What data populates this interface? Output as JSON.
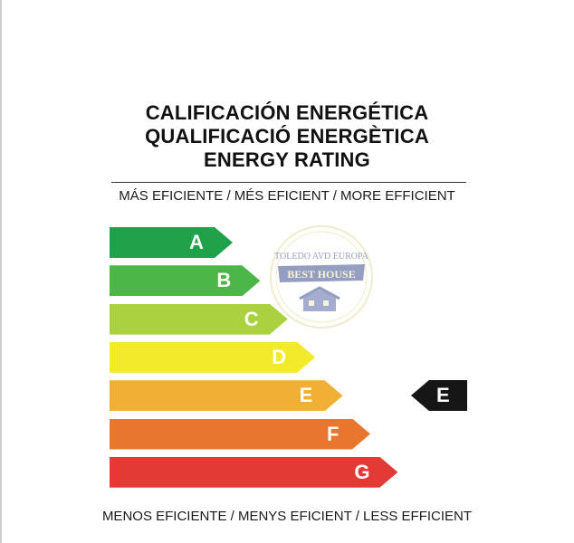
{
  "titles": [
    "CALIFICACIÓN ENERGÉTICA",
    "QUALIFICACIÓ ENERGÈTICA",
    "ENERGY RATING"
  ],
  "top_caption": "MÁS EFICIENTE / MÉS EFICIENT / MORE EFFICIENT",
  "bottom_caption": "MENOS EFICIENTE / MENYS EFICIENT / LESS EFFICIENT",
  "ratings": [
    {
      "letter": "A",
      "color": "#1fa24a"
    },
    {
      "letter": "B",
      "color": "#4cb648"
    },
    {
      "letter": "C",
      "color": "#a9d140"
    },
    {
      "letter": "D",
      "color": "#f2ea2b"
    },
    {
      "letter": "E",
      "color": "#f0b035"
    },
    {
      "letter": "F",
      "color": "#e8762f"
    },
    {
      "letter": "G",
      "color": "#e33a36"
    }
  ],
  "current_rating": "E",
  "watermark": {
    "line1": "TOLEDO AVD EUROPA",
    "line2": "BEST HOUSE"
  }
}
